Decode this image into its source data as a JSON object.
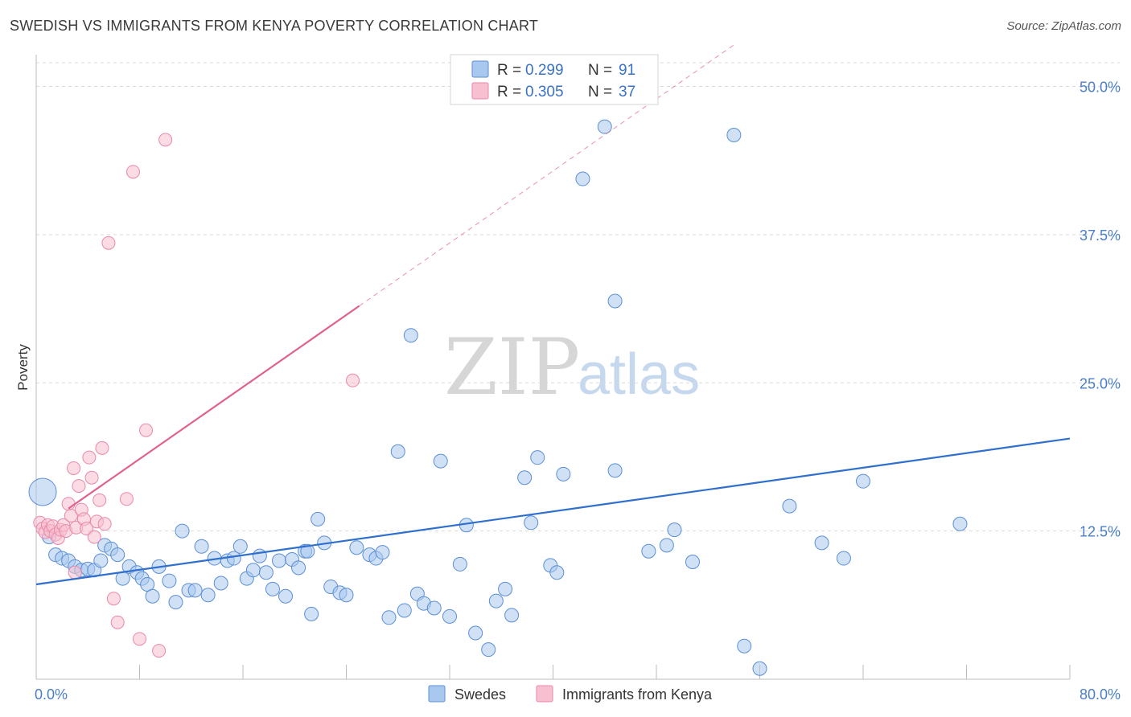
{
  "header": {
    "title": "SWEDISH VS IMMIGRANTS FROM KENYA POVERTY CORRELATION CHART",
    "source": "Source: ZipAtlas.com"
  },
  "watermark": {
    "zip": "ZIP",
    "atlas": "atlas"
  },
  "legend": {
    "rows": [
      {
        "r_label": "R = ",
        "r_value": "0.299",
        "n_label": "N = ",
        "n_value": "91"
      },
      {
        "r_label": "R = ",
        "r_value": "0.305",
        "n_label": "N = ",
        "n_value": "37"
      }
    ]
  },
  "bottom_legend": {
    "items": [
      {
        "label": "Swedes"
      },
      {
        "label": "Immigrants from Kenya"
      }
    ]
  },
  "colors": {
    "swedes_fill": "#a9c8ef",
    "swedes_stroke": "#5b8fd4",
    "swedes_line": "#2f6fce",
    "kenya_fill": "#f7bfd0",
    "kenya_stroke": "#e989a8",
    "kenya_line": "#e0608e",
    "grid": "#d9d9d9",
    "tick_label": "#4a7fc8"
  },
  "chart_data": {
    "type": "scatter",
    "title": "SWEDISH VS IMMIGRANTS FROM KENYA POVERTY CORRELATION CHART",
    "xlabel": "",
    "ylabel": "Poverty",
    "xlim": [
      0,
      80
    ],
    "ylim": [
      0,
      50
    ],
    "x_tick_labels": [
      "0.0%",
      "80.0%"
    ],
    "y_ticks": [
      12.5,
      25,
      37.5,
      50
    ],
    "y_tick_labels": [
      "12.5%",
      "25.0%",
      "37.5%",
      "50.0%"
    ],
    "grid": true,
    "legend_position": "top-center",
    "series": [
      {
        "name": "Swedes",
        "r": 0.299,
        "n": 91,
        "trend": {
          "x": [
            0,
            80
          ],
          "y": [
            8,
            20.3
          ],
          "dashed_from_x": null
        },
        "points": [
          {
            "x": 0.5,
            "y": 15.8,
            "big": true
          },
          {
            "x": 1.0,
            "y": 12.0
          },
          {
            "x": 1.5,
            "y": 10.5
          },
          {
            "x": 2.0,
            "y": 10.2
          },
          {
            "x": 2.5,
            "y": 10.0
          },
          {
            "x": 3.0,
            "y": 9.5
          },
          {
            "x": 3.5,
            "y": 9.2
          },
          {
            "x": 4.0,
            "y": 9.3
          },
          {
            "x": 4.5,
            "y": 9.2
          },
          {
            "x": 5.0,
            "y": 10.0
          },
          {
            "x": 5.3,
            "y": 11.3
          },
          {
            "x": 5.8,
            "y": 11.0
          },
          {
            "x": 6.3,
            "y": 10.5
          },
          {
            "x": 6.7,
            "y": 8.5
          },
          {
            "x": 7.2,
            "y": 9.5
          },
          {
            "x": 7.8,
            "y": 9.0
          },
          {
            "x": 8.2,
            "y": 8.5
          },
          {
            "x": 8.6,
            "y": 8.0
          },
          {
            "x": 9.0,
            "y": 7.0
          },
          {
            "x": 9.5,
            "y": 9.5
          },
          {
            "x": 10.3,
            "y": 8.3
          },
          {
            "x": 10.8,
            "y": 6.5
          },
          {
            "x": 11.3,
            "y": 12.5
          },
          {
            "x": 11.8,
            "y": 7.5
          },
          {
            "x": 12.3,
            "y": 7.5
          },
          {
            "x": 12.8,
            "y": 11.2
          },
          {
            "x": 13.3,
            "y": 7.1
          },
          {
            "x": 13.8,
            "y": 10.2
          },
          {
            "x": 14.3,
            "y": 8.1
          },
          {
            "x": 14.8,
            "y": 10.0
          },
          {
            "x": 15.3,
            "y": 10.2
          },
          {
            "x": 15.8,
            "y": 11.2
          },
          {
            "x": 16.3,
            "y": 8.5
          },
          {
            "x": 16.8,
            "y": 9.2
          },
          {
            "x": 17.3,
            "y": 10.4
          },
          {
            "x": 17.8,
            "y": 9.0
          },
          {
            "x": 18.3,
            "y": 7.6
          },
          {
            "x": 18.8,
            "y": 10.0
          },
          {
            "x": 19.3,
            "y": 7.0
          },
          {
            "x": 19.8,
            "y": 10.1
          },
          {
            "x": 20.3,
            "y": 9.4
          },
          {
            "x": 20.8,
            "y": 10.8
          },
          {
            "x": 21.3,
            "y": 5.5
          },
          {
            "x": 21.8,
            "y": 13.5
          },
          {
            "x": 22.3,
            "y": 11.5
          },
          {
            "x": 22.8,
            "y": 7.8
          },
          {
            "x": 23.5,
            "y": 7.3
          },
          {
            "x": 24.0,
            "y": 7.1
          },
          {
            "x": 24.8,
            "y": 11.1
          },
          {
            "x": 25.8,
            "y": 10.5
          },
          {
            "x": 26.3,
            "y": 10.2
          },
          {
            "x": 26.8,
            "y": 10.7
          },
          {
            "x": 27.3,
            "y": 5.2
          },
          {
            "x": 28.0,
            "y": 19.2
          },
          {
            "x": 28.5,
            "y": 5.8
          },
          {
            "x": 29.0,
            "y": 29.0
          },
          {
            "x": 29.5,
            "y": 7.2
          },
          {
            "x": 30.0,
            "y": 6.4
          },
          {
            "x": 30.8,
            "y": 6.0
          },
          {
            "x": 31.3,
            "y": 18.4
          },
          {
            "x": 32.0,
            "y": 5.3
          },
          {
            "x": 32.8,
            "y": 9.7
          },
          {
            "x": 33.3,
            "y": 13.0
          },
          {
            "x": 34.0,
            "y": 3.9
          },
          {
            "x": 35.0,
            "y": 2.5
          },
          {
            "x": 35.6,
            "y": 6.6
          },
          {
            "x": 36.3,
            "y": 7.6
          },
          {
            "x": 36.8,
            "y": 5.4
          },
          {
            "x": 37.8,
            "y": 17.0
          },
          {
            "x": 38.3,
            "y": 13.2
          },
          {
            "x": 38.8,
            "y": 18.7
          },
          {
            "x": 39.8,
            "y": 9.6
          },
          {
            "x": 40.3,
            "y": 9.0
          },
          {
            "x": 40.8,
            "y": 17.3
          },
          {
            "x": 42.3,
            "y": 42.2
          },
          {
            "x": 44.0,
            "y": 46.6
          },
          {
            "x": 44.8,
            "y": 31.9
          },
          {
            "x": 44.8,
            "y": 17.6
          },
          {
            "x": 47.4,
            "y": 10.8
          },
          {
            "x": 48.8,
            "y": 11.3
          },
          {
            "x": 49.4,
            "y": 12.6
          },
          {
            "x": 50.8,
            "y": 9.9
          },
          {
            "x": 54.0,
            "y": 45.9
          },
          {
            "x": 54.8,
            "y": 2.8
          },
          {
            "x": 56.0,
            "y": 0.9
          },
          {
            "x": 58.3,
            "y": 14.6
          },
          {
            "x": 60.8,
            "y": 11.5
          },
          {
            "x": 62.5,
            "y": 10.2
          },
          {
            "x": 64.0,
            "y": 16.7
          },
          {
            "x": 71.5,
            "y": 13.1
          },
          {
            "x": 21.0,
            "y": 10.8
          }
        ]
      },
      {
        "name": "Immigrants from Kenya",
        "r": 0.305,
        "n": 37,
        "trend": {
          "x": [
            0,
            54
          ],
          "y": [
            12.5,
            53.5
          ],
          "dashed_from_x": 25
        },
        "points": [
          {
            "x": 0.3,
            "y": 13.2
          },
          {
            "x": 0.5,
            "y": 12.7
          },
          {
            "x": 0.7,
            "y": 12.4
          },
          {
            "x": 0.9,
            "y": 13.0
          },
          {
            "x": 1.1,
            "y": 12.5
          },
          {
            "x": 1.3,
            "y": 12.9
          },
          {
            "x": 1.5,
            "y": 12.2
          },
          {
            "x": 1.7,
            "y": 11.9
          },
          {
            "x": 1.9,
            "y": 12.6
          },
          {
            "x": 2.1,
            "y": 13.0
          },
          {
            "x": 2.3,
            "y": 12.5
          },
          {
            "x": 2.5,
            "y": 14.8
          },
          {
            "x": 2.7,
            "y": 13.8
          },
          {
            "x": 2.9,
            "y": 17.8
          },
          {
            "x": 3.1,
            "y": 12.8
          },
          {
            "x": 3.3,
            "y": 16.3
          },
          {
            "x": 3.5,
            "y": 14.3
          },
          {
            "x": 3.7,
            "y": 13.5
          },
          {
            "x": 3.9,
            "y": 12.7
          },
          {
            "x": 4.1,
            "y": 18.7
          },
          {
            "x": 4.3,
            "y": 17.0
          },
          {
            "x": 4.5,
            "y": 12.0
          },
          {
            "x": 4.7,
            "y": 13.3
          },
          {
            "x": 4.9,
            "y": 15.1
          },
          {
            "x": 5.1,
            "y": 19.5
          },
          {
            "x": 5.3,
            "y": 13.1
          },
          {
            "x": 5.6,
            "y": 36.8
          },
          {
            "x": 6.0,
            "y": 6.8
          },
          {
            "x": 6.3,
            "y": 4.8
          },
          {
            "x": 7.0,
            "y": 15.2
          },
          {
            "x": 7.5,
            "y": 42.8
          },
          {
            "x": 8.0,
            "y": 3.4
          },
          {
            "x": 8.5,
            "y": 21.0
          },
          {
            "x": 9.5,
            "y": 2.4
          },
          {
            "x": 10.0,
            "y": 45.5
          },
          {
            "x": 24.5,
            "y": 25.2
          },
          {
            "x": 3.0,
            "y": 9.0
          }
        ]
      }
    ]
  }
}
